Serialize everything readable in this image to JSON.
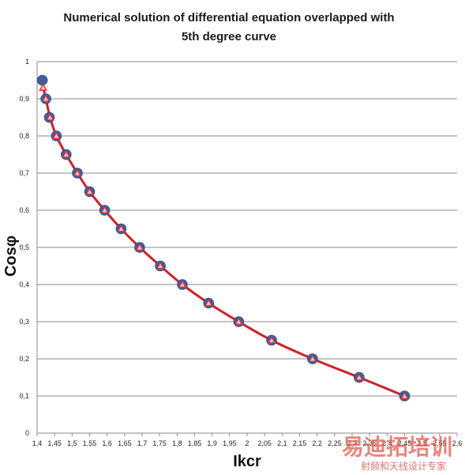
{
  "chart_data": {
    "type": "scatter",
    "title": "Numerical solution of differential equation overlapped with",
    "subtitle": "5th degree curve",
    "xlabel": "Ikcr",
    "ylabel": "Cosφ",
    "xlim": [
      1.4,
      2.6
    ],
    "ylim": [
      0,
      1
    ],
    "x_ticks": [
      "1,4",
      "1,45",
      "1,5",
      "1,55",
      "1,6",
      "1,65",
      "1,7",
      "1,75",
      "1,8",
      "1,85",
      "1,9",
      "1,95",
      "2",
      "2,05",
      "2,1",
      "2,15",
      "2,2",
      "2,25",
      "2,3",
      "2,35",
      "2,4",
      "2,45",
      "2,5",
      "2,55",
      "2,6"
    ],
    "y_ticks": [
      "0",
      "0,1",
      "0,2",
      "0,3",
      "0,4",
      "0,5",
      "0,6",
      "0,7",
      "0,8",
      "0,9",
      "1"
    ],
    "grid": "horizontal",
    "series": [
      {
        "marker": "circle",
        "color": "#3d5e99",
        "points": [
          [
            1.415,
            0.95
          ],
          [
            1.425,
            0.9
          ],
          [
            1.435,
            0.85
          ],
          [
            1.455,
            0.8
          ],
          [
            1.483,
            0.75
          ],
          [
            1.515,
            0.7
          ],
          [
            1.55,
            0.65
          ],
          [
            1.593,
            0.6
          ],
          [
            1.64,
            0.55
          ],
          [
            1.693,
            0.5
          ],
          [
            1.752,
            0.45
          ],
          [
            1.815,
            0.4
          ],
          [
            1.89,
            0.35
          ],
          [
            1.976,
            0.3
          ],
          [
            2.07,
            0.25
          ],
          [
            2.187,
            0.2
          ],
          [
            2.32,
            0.15
          ],
          [
            2.45,
            0.1
          ]
        ]
      },
      {
        "marker": "triangle",
        "color": "#e0303a",
        "points": [
          [
            1.417,
            0.93
          ],
          [
            1.425,
            0.9
          ],
          [
            1.437,
            0.85
          ],
          [
            1.455,
            0.8
          ],
          [
            1.483,
            0.75
          ],
          [
            1.515,
            0.7
          ],
          [
            1.55,
            0.65
          ],
          [
            1.593,
            0.6
          ],
          [
            1.64,
            0.55
          ],
          [
            1.693,
            0.5
          ],
          [
            1.752,
            0.45
          ],
          [
            1.815,
            0.4
          ],
          [
            1.89,
            0.35
          ],
          [
            1.976,
            0.3
          ],
          [
            2.07,
            0.25
          ],
          [
            2.187,
            0.2
          ],
          [
            2.32,
            0.15
          ],
          [
            2.45,
            0.1
          ]
        ]
      },
      {
        "marker": "line",
        "color": "#d0202a",
        "points": [
          [
            1.417,
            0.93
          ],
          [
            1.425,
            0.9
          ],
          [
            1.437,
            0.85
          ],
          [
            1.455,
            0.8
          ],
          [
            1.483,
            0.75
          ],
          [
            1.515,
            0.7
          ],
          [
            1.55,
            0.65
          ],
          [
            1.593,
            0.6
          ],
          [
            1.64,
            0.55
          ],
          [
            1.693,
            0.5
          ],
          [
            1.752,
            0.45
          ],
          [
            1.815,
            0.4
          ],
          [
            1.89,
            0.35
          ],
          [
            1.976,
            0.3
          ],
          [
            2.07,
            0.25
          ],
          [
            2.187,
            0.2
          ],
          [
            2.32,
            0.15
          ],
          [
            2.45,
            0.1
          ]
        ]
      }
    ]
  },
  "watermark": {
    "main": "易迪拓培训",
    "sub": "射频和天线设计专家"
  }
}
